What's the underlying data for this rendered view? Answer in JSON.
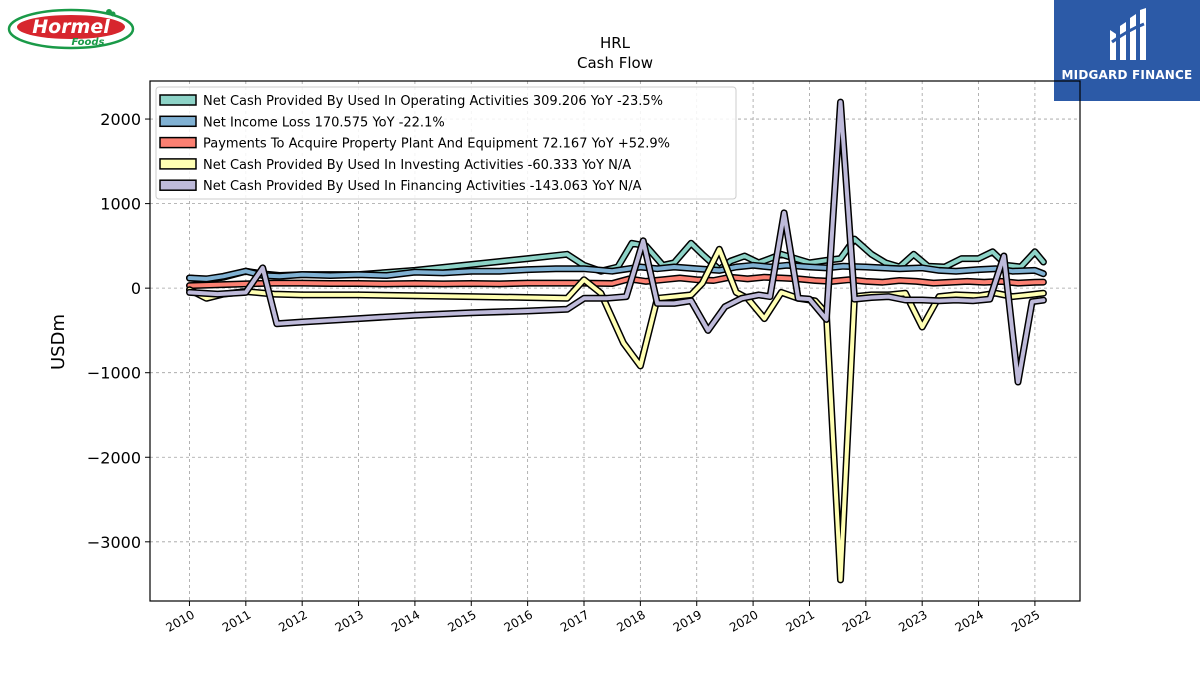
{
  "logos": {
    "left": {
      "name": "Hormel Foods",
      "word1": "Hormel",
      "word2": "Foods"
    },
    "right": {
      "name": "MIDGARD FINANCE"
    }
  },
  "chart_data": {
    "type": "line",
    "title": "HRL",
    "subtitle": "Cash Flow",
    "xlabel": "",
    "ylabel": "USDm",
    "xlim": [
      2009.3,
      2025.8
    ],
    "ylim": [
      -3700,
      2450
    ],
    "x_ticks": [
      2010,
      2011,
      2012,
      2013,
      2014,
      2015,
      2016,
      2017,
      2018,
      2019,
      2020,
      2021,
      2022,
      2023,
      2024,
      2025
    ],
    "y_ticks": [
      2000,
      1000,
      0,
      -1000,
      -2000,
      -3000
    ],
    "y_tick_labels": [
      "2000",
      "1000",
      "0",
      "−1000",
      "−2000",
      "−3000"
    ],
    "grid": true,
    "legend_position": "upper-left",
    "series": [
      {
        "name": "Net Cash Provided By Used In Operating Activities",
        "legend": "Net Cash Provided By Used In Operating Activities  309.206 YoY -23.5%",
        "color": "#8dd3c7",
        "points": [
          [
            2010.0,
            120
          ],
          [
            2010.3,
            100
          ],
          [
            2010.6,
            130
          ],
          [
            2011.0,
            200
          ],
          [
            2011.3,
            170
          ],
          [
            2011.6,
            150
          ],
          [
            2012.0,
            160
          ],
          [
            2012.5,
            160
          ],
          [
            2013.0,
            160
          ],
          [
            2014.0,
            210
          ],
          [
            2015.0,
            280
          ],
          [
            2016.0,
            350
          ],
          [
            2016.7,
            400
          ],
          [
            2017.0,
            270
          ],
          [
            2017.3,
            200
          ],
          [
            2017.6,
            250
          ],
          [
            2017.85,
            530
          ],
          [
            2018.1,
            500
          ],
          [
            2018.4,
            270
          ],
          [
            2018.6,
            300
          ],
          [
            2018.9,
            530
          ],
          [
            2019.1,
            400
          ],
          [
            2019.4,
            220
          ],
          [
            2019.6,
            320
          ],
          [
            2019.85,
            380
          ],
          [
            2020.1,
            300
          ],
          [
            2020.3,
            350
          ],
          [
            2020.5,
            400
          ],
          [
            2020.75,
            350
          ],
          [
            2021.0,
            300
          ],
          [
            2021.3,
            330
          ],
          [
            2021.55,
            350
          ],
          [
            2021.8,
            580
          ],
          [
            2022.1,
            400
          ],
          [
            2022.35,
            300
          ],
          [
            2022.6,
            250
          ],
          [
            2022.85,
            400
          ],
          [
            2023.1,
            260
          ],
          [
            2023.4,
            250
          ],
          [
            2023.7,
            350
          ],
          [
            2024.0,
            350
          ],
          [
            2024.25,
            430
          ],
          [
            2024.5,
            270
          ],
          [
            2024.75,
            250
          ],
          [
            2025.0,
            430
          ],
          [
            2025.15,
            309
          ]
        ]
      },
      {
        "name": "Net Income Loss",
        "legend": "Net Income Loss  170.575 YoY -22.1%",
        "color": "#80b1d3",
        "points": [
          [
            2010.0,
            120
          ],
          [
            2010.3,
            110
          ],
          [
            2010.6,
            140
          ],
          [
            2011.0,
            200
          ],
          [
            2011.3,
            150
          ],
          [
            2011.6,
            140
          ],
          [
            2012.0,
            160
          ],
          [
            2012.5,
            150
          ],
          [
            2013.0,
            160
          ],
          [
            2013.5,
            150
          ],
          [
            2014.0,
            190
          ],
          [
            2014.5,
            180
          ],
          [
            2015.0,
            200
          ],
          [
            2015.5,
            200
          ],
          [
            2016.0,
            220
          ],
          [
            2016.5,
            230
          ],
          [
            2017.0,
            230
          ],
          [
            2017.5,
            200
          ],
          [
            2018.0,
            250
          ],
          [
            2018.3,
            230
          ],
          [
            2018.6,
            250
          ],
          [
            2019.0,
            230
          ],
          [
            2019.4,
            210
          ],
          [
            2019.7,
            250
          ],
          [
            2020.0,
            270
          ],
          [
            2020.3,
            250
          ],
          [
            2020.6,
            270
          ],
          [
            2021.0,
            250
          ],
          [
            2021.3,
            240
          ],
          [
            2021.6,
            260
          ],
          [
            2022.0,
            250
          ],
          [
            2022.3,
            240
          ],
          [
            2022.6,
            230
          ],
          [
            2023.0,
            240
          ],
          [
            2023.3,
            210
          ],
          [
            2023.6,
            200
          ],
          [
            2024.0,
            220
          ],
          [
            2024.3,
            230
          ],
          [
            2024.6,
            200
          ],
          [
            2025.0,
            210
          ],
          [
            2025.15,
            171
          ]
        ]
      },
      {
        "name": "Payments To Acquire Property Plant And Equipment",
        "legend": "Payments To Acquire Property Plant And Equipment  72.167 YoY +52.9%",
        "color": "#fb8072",
        "points": [
          [
            2010.0,
            30
          ],
          [
            2010.5,
            40
          ],
          [
            2011.0,
            50
          ],
          [
            2011.5,
            60
          ],
          [
            2012.0,
            60
          ],
          [
            2012.5,
            55
          ],
          [
            2013.0,
            55
          ],
          [
            2013.5,
            50
          ],
          [
            2014.0,
            55
          ],
          [
            2014.5,
            50
          ],
          [
            2015.0,
            55
          ],
          [
            2015.5,
            50
          ],
          [
            2016.0,
            60
          ],
          [
            2016.5,
            60
          ],
          [
            2017.0,
            60
          ],
          [
            2017.5,
            55
          ],
          [
            2017.8,
            110
          ],
          [
            2018.1,
            80
          ],
          [
            2018.4,
            100
          ],
          [
            2018.7,
            120
          ],
          [
            2019.0,
            100
          ],
          [
            2019.3,
            90
          ],
          [
            2019.6,
            130
          ],
          [
            2019.9,
            110
          ],
          [
            2020.2,
            130
          ],
          [
            2020.5,
            120
          ],
          [
            2020.8,
            110
          ],
          [
            2021.1,
            90
          ],
          [
            2021.4,
            80
          ],
          [
            2021.7,
            100
          ],
          [
            2022.0,
            80
          ],
          [
            2022.3,
            70
          ],
          [
            2022.6,
            90
          ],
          [
            2022.9,
            80
          ],
          [
            2023.2,
            60
          ],
          [
            2023.5,
            70
          ],
          [
            2023.8,
            80
          ],
          [
            2024.1,
            70
          ],
          [
            2024.4,
            80
          ],
          [
            2024.7,
            60
          ],
          [
            2025.0,
            70
          ],
          [
            2025.15,
            72
          ]
        ]
      },
      {
        "name": "Net Cash Provided By Used In Investing Activities",
        "legend": "Net Cash Provided By Used In Investing Activities  -60.333 YoY N/A",
        "color": "#ffffb3",
        "points": [
          [
            2010.0,
            -20
          ],
          [
            2010.3,
            -120
          ],
          [
            2010.6,
            -70
          ],
          [
            2011.0,
            -40
          ],
          [
            2011.5,
            -70
          ],
          [
            2012.0,
            -80
          ],
          [
            2013.0,
            -80
          ],
          [
            2014.0,
            -90
          ],
          [
            2015.0,
            -100
          ],
          [
            2016.0,
            -110
          ],
          [
            2016.7,
            -120
          ],
          [
            2017.0,
            100
          ],
          [
            2017.3,
            -60
          ],
          [
            2017.7,
            -650
          ],
          [
            2018.0,
            -920
          ],
          [
            2018.3,
            -120
          ],
          [
            2018.6,
            -100
          ],
          [
            2018.9,
            -80
          ],
          [
            2019.1,
            60
          ],
          [
            2019.4,
            460
          ],
          [
            2019.7,
            -50
          ],
          [
            2019.9,
            -120
          ],
          [
            2020.2,
            -360
          ],
          [
            2020.5,
            -50
          ],
          [
            2020.8,
            -120
          ],
          [
            2021.1,
            -150
          ],
          [
            2021.3,
            -300
          ],
          [
            2021.55,
            -3450
          ],
          [
            2021.8,
            -100
          ],
          [
            2022.1,
            -80
          ],
          [
            2022.4,
            -80
          ],
          [
            2022.7,
            -60
          ],
          [
            2023.0,
            -460
          ],
          [
            2023.3,
            -100
          ],
          [
            2023.6,
            -80
          ],
          [
            2024.0,
            -90
          ],
          [
            2024.3,
            -60
          ],
          [
            2024.6,
            -100
          ],
          [
            2024.9,
            -80
          ],
          [
            2025.15,
            -60
          ]
        ]
      },
      {
        "name": "Net Cash Provided By Used In Financing Activities",
        "legend": "Net Cash Provided By Used In Financing Activities  -143.063 YoY N/A",
        "color": "#bebada",
        "points": [
          [
            2010.0,
            -50
          ],
          [
            2010.5,
            -70
          ],
          [
            2011.0,
            -50
          ],
          [
            2011.3,
            240
          ],
          [
            2011.55,
            -420
          ],
          [
            2012.0,
            -400
          ],
          [
            2013.0,
            -360
          ],
          [
            2014.0,
            -320
          ],
          [
            2015.0,
            -290
          ],
          [
            2016.0,
            -270
          ],
          [
            2016.7,
            -250
          ],
          [
            2017.0,
            -120
          ],
          [
            2017.4,
            -120
          ],
          [
            2017.75,
            -100
          ],
          [
            2018.05,
            560
          ],
          [
            2018.3,
            -180
          ],
          [
            2018.6,
            -180
          ],
          [
            2018.9,
            -150
          ],
          [
            2019.2,
            -500
          ],
          [
            2019.5,
            -220
          ],
          [
            2019.8,
            -120
          ],
          [
            2020.1,
            -80
          ],
          [
            2020.3,
            -100
          ],
          [
            2020.55,
            890
          ],
          [
            2020.8,
            -120
          ],
          [
            2021.0,
            -130
          ],
          [
            2021.3,
            -370
          ],
          [
            2021.55,
            2200
          ],
          [
            2021.8,
            -130
          ],
          [
            2022.1,
            -110
          ],
          [
            2022.4,
            -100
          ],
          [
            2022.7,
            -140
          ],
          [
            2023.0,
            -140
          ],
          [
            2023.3,
            -150
          ],
          [
            2023.6,
            -140
          ],
          [
            2023.9,
            -150
          ],
          [
            2024.2,
            -130
          ],
          [
            2024.45,
            380
          ],
          [
            2024.7,
            -1110
          ],
          [
            2024.95,
            -160
          ],
          [
            2025.15,
            -143
          ]
        ]
      }
    ]
  }
}
